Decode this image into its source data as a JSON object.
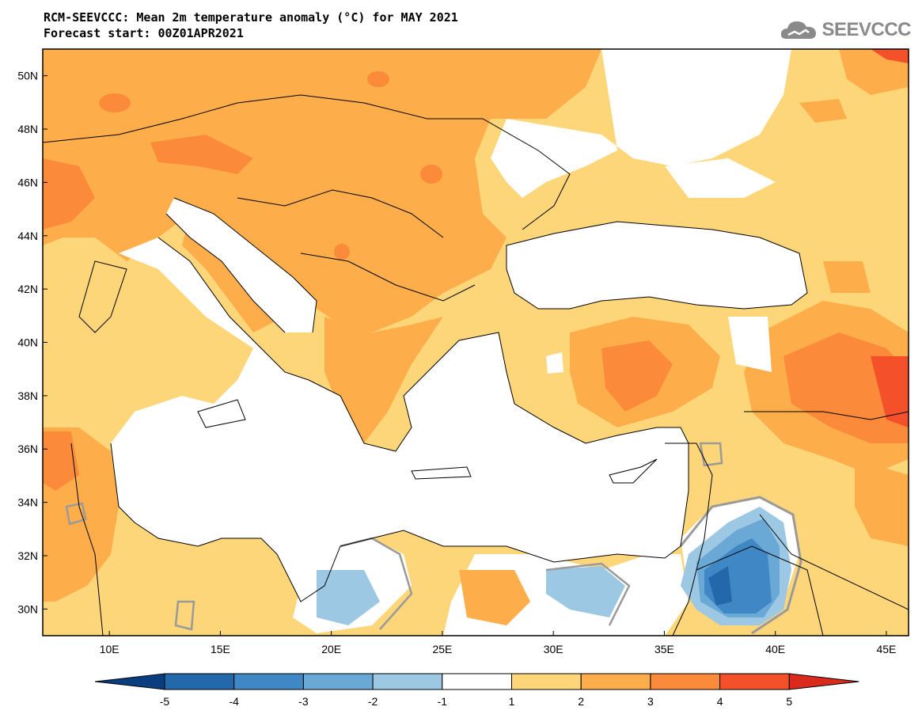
{
  "title": {
    "line1": "RCM-SEEVCCC: Mean 2m temperature anomaly (°C) for MAY 2021",
    "line2": "Forecast start: 00Z01APR2021"
  },
  "logo": {
    "text": "SEEVCCC",
    "icon": "cloud-icon"
  },
  "map": {
    "lon_range": [
      7,
      46
    ],
    "lat_range": [
      29,
      51
    ],
    "lat_ticks": [
      "50N",
      "48N",
      "46N",
      "44N",
      "42N",
      "40N",
      "38N",
      "36N",
      "34N",
      "32N",
      "30N"
    ],
    "lon_ticks": [
      "10E",
      "15E",
      "20E",
      "25E",
      "30E",
      "35E",
      "40E",
      "45E"
    ]
  },
  "colorbar": {
    "labels": [
      "-5",
      "-4",
      "-3",
      "-2",
      "-1",
      "1",
      "2",
      "3",
      "4",
      "5"
    ],
    "colors": [
      "#0a3d80",
      "#2368aa",
      "#3f88c5",
      "#6aa8d6",
      "#9cc8e4",
      "#ffffff",
      "#fdd679",
      "#fdae4b",
      "#fb8a3a",
      "#f4502a",
      "#d92a1c"
    ]
  }
}
